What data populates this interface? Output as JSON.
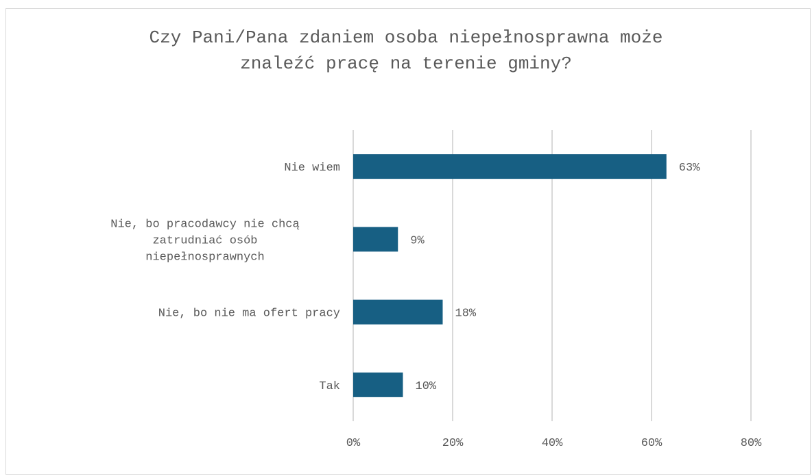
{
  "chart_data": {
    "type": "bar",
    "orientation": "horizontal",
    "title_lines": [
      "Czy Pani/Pana zdaniem osoba niepełnosprawna może",
      "znaleźć pracę na terenie gminy?"
    ],
    "categories": [
      [
        "Nie wiem"
      ],
      [
        "Nie, bo pracodawcy nie chcą",
        "zatrudniać osób",
        "niepełnosprawnych"
      ],
      [
        "Nie, bo nie ma ofert pracy"
      ],
      [
        "Tak"
      ]
    ],
    "values": [
      63,
      9,
      18,
      10
    ],
    "data_labels": [
      "63%",
      "9%",
      "18%",
      "10%"
    ],
    "xlim": [
      0,
      80
    ],
    "xticks": [
      0,
      20,
      40,
      60,
      80
    ],
    "xtick_labels": [
      "0%",
      "20%",
      "40%",
      "60%",
      "80%"
    ],
    "grid": "vertical",
    "legend": "none",
    "colors": {
      "bar": "#175f83",
      "grid": "#d9d9d9",
      "text": "#595959"
    }
  }
}
